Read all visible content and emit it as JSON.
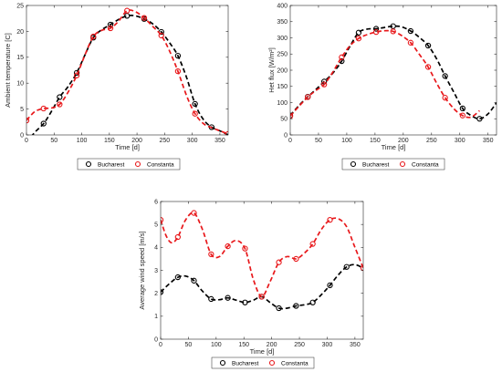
{
  "chart_data": [
    {
      "id": "temp",
      "type": "line",
      "xlabel": "Time [d]",
      "ylabel": "Ambient temperature [C]",
      "xlim": [
        0,
        365
      ],
      "ylim": [
        0,
        25
      ],
      "xticks": [
        0,
        50,
        100,
        150,
        200,
        250,
        300,
        350
      ],
      "yticks": [
        0,
        5,
        10,
        15,
        20,
        25
      ],
      "grid": false,
      "legend_placement": "below",
      "series": [
        {
          "name": "Bucharest",
          "color": "#000000",
          "points": [
            [
              31,
              2.2
            ],
            [
              60,
              7.3
            ],
            [
              91,
              12.0
            ],
            [
              121,
              18.8
            ],
            [
              152,
              21.3
            ],
            [
              182,
              23.0
            ],
            [
              213,
              22.4
            ],
            [
              244,
              19.9
            ],
            [
              274,
              15.3
            ],
            [
              305,
              6.0
            ],
            [
              335,
              1.5
            ]
          ],
          "curve": [
            [
              0,
              -1.5
            ],
            [
              15,
              0.5
            ],
            [
              31,
              2.2
            ],
            [
              45,
              4.5
            ],
            [
              60,
              7.3
            ],
            [
              75,
              9.3
            ],
            [
              91,
              12.0
            ],
            [
              106,
              15.5
            ],
            [
              121,
              18.8
            ],
            [
              136,
              20.3
            ],
            [
              152,
              21.3
            ],
            [
              167,
              22.3
            ],
            [
              182,
              23.0
            ],
            [
              197,
              23.0
            ],
            [
              213,
              22.4
            ],
            [
              228,
              21.5
            ],
            [
              244,
              19.9
            ],
            [
              259,
              17.8
            ],
            [
              274,
              15.3
            ],
            [
              290,
              11.0
            ],
            [
              305,
              6.0
            ],
            [
              320,
              3.0
            ],
            [
              335,
              1.5
            ],
            [
              350,
              0.8
            ],
            [
              365,
              0.0
            ]
          ]
        },
        {
          "name": "Constanta",
          "color": "#e8181b",
          "points": [
            [
              0,
              2.8
            ],
            [
              31,
              5.1
            ],
            [
              60,
              5.9
            ],
            [
              91,
              11.5
            ],
            [
              121,
              19.0
            ],
            [
              152,
              20.6
            ],
            [
              182,
              24.0
            ],
            [
              213,
              22.6
            ],
            [
              244,
              19.2
            ],
            [
              274,
              12.3
            ],
            [
              305,
              4.1
            ],
            [
              365,
              0.2
            ]
          ],
          "curve": [
            [
              0,
              2.8
            ],
            [
              15,
              4.5
            ],
            [
              31,
              5.1
            ],
            [
              45,
              5.2
            ],
            [
              60,
              5.9
            ],
            [
              75,
              8.2
            ],
            [
              91,
              11.5
            ],
            [
              106,
              15.5
            ],
            [
              121,
              19.0
            ],
            [
              136,
              20.2
            ],
            [
              152,
              20.6
            ],
            [
              167,
              22.0
            ],
            [
              182,
              24.0
            ],
            [
              197,
              23.8
            ],
            [
              213,
              22.6
            ],
            [
              228,
              21.0
            ],
            [
              244,
              19.2
            ],
            [
              259,
              16.2
            ],
            [
              274,
              12.3
            ],
            [
              290,
              7.5
            ],
            [
              305,
              4.1
            ],
            [
              320,
              2.2
            ],
            [
              335,
              1.4
            ],
            [
              350,
              0.8
            ],
            [
              365,
              0.2
            ]
          ]
        }
      ]
    },
    {
      "id": "heat",
      "type": "line",
      "xlabel": "Time [d]",
      "ylabel": "Het flux [W/m²]",
      "xlim": [
        0,
        365
      ],
      "ylim": [
        0,
        400
      ],
      "xticks": [
        0,
        50,
        100,
        150,
        200,
        250,
        300,
        350
      ],
      "yticks": [
        0,
        50,
        100,
        150,
        200,
        250,
        300,
        350,
        400
      ],
      "grid": false,
      "legend_placement": "below",
      "series": [
        {
          "name": "Bucharest",
          "color": "#000000",
          "points": [
            [
              0,
              60
            ],
            [
              31,
              118
            ],
            [
              60,
              165
            ],
            [
              91,
              228
            ],
            [
              121,
              316
            ],
            [
              152,
              328
            ],
            [
              182,
              336
            ],
            [
              213,
              321
            ],
            [
              244,
              276
            ],
            [
              274,
              182
            ],
            [
              305,
              82
            ],
            [
              335,
              50
            ]
          ],
          "curve": [
            [
              0,
              60
            ],
            [
              15,
              90
            ],
            [
              31,
              118
            ],
            [
              45,
              140
            ],
            [
              60,
              165
            ],
            [
              75,
              190
            ],
            [
              91,
              228
            ],
            [
              106,
              275
            ],
            [
              121,
              316
            ],
            [
              136,
              327
            ],
            [
              152,
              328
            ],
            [
              167,
              332
            ],
            [
              182,
              336
            ],
            [
              197,
              334
            ],
            [
              213,
              321
            ],
            [
              228,
              302
            ],
            [
              244,
              276
            ],
            [
              259,
              235
            ],
            [
              274,
              182
            ],
            [
              290,
              130
            ],
            [
              305,
              82
            ],
            [
              320,
              60
            ],
            [
              335,
              50
            ],
            [
              350,
              65
            ],
            [
              365,
              100
            ]
          ]
        },
        {
          "name": "Constanta",
          "color": "#e8181b",
          "points": [
            [
              0,
              58
            ],
            [
              31,
              117
            ],
            [
              60,
              156
            ],
            [
              91,
              240
            ],
            [
              121,
              298
            ],
            [
              152,
              318
            ],
            [
              182,
              320
            ],
            [
              213,
              285
            ],
            [
              244,
              210
            ],
            [
              274,
              115
            ],
            [
              305,
              60
            ]
          ],
          "curve": [
            [
              0,
              58
            ],
            [
              15,
              88
            ],
            [
              31,
              117
            ],
            [
              45,
              137
            ],
            [
              60,
              156
            ],
            [
              75,
              193
            ],
            [
              91,
              240
            ],
            [
              106,
              276
            ],
            [
              121,
              298
            ],
            [
              136,
              310
            ],
            [
              152,
              318
            ],
            [
              167,
              322
            ],
            [
              182,
              320
            ],
            [
              197,
              307
            ],
            [
              213,
              285
            ],
            [
              228,
              250
            ],
            [
              244,
              210
            ],
            [
              259,
              160
            ],
            [
              274,
              115
            ],
            [
              290,
              80
            ],
            [
              305,
              60
            ],
            [
              320,
              55
            ],
            [
              335,
              75
            ]
          ]
        }
      ]
    },
    {
      "id": "wind",
      "type": "line",
      "xlabel": "Time [d]",
      "ylabel": "Average wind speed [m/s]",
      "xlim": [
        0,
        365
      ],
      "ylim": [
        0,
        6
      ],
      "xticks": [
        0,
        50,
        100,
        150,
        200,
        250,
        300,
        350
      ],
      "yticks": [
        0,
        1,
        2,
        3,
        4,
        5,
        6
      ],
      "grid": false,
      "legend_placement": "below",
      "series": [
        {
          "name": "Bucharest",
          "color": "#000000",
          "points": [
            [
              0,
              2.05
            ],
            [
              31,
              2.7
            ],
            [
              60,
              2.55
            ],
            [
              91,
              1.75
            ],
            [
              121,
              1.8
            ],
            [
              152,
              1.6
            ],
            [
              182,
              1.85
            ],
            [
              213,
              1.35
            ],
            [
              244,
              1.45
            ],
            [
              274,
              1.6
            ],
            [
              305,
              2.35
            ],
            [
              335,
              3.15
            ]
          ],
          "curve": [
            [
              0,
              2.05
            ],
            [
              15,
              2.4
            ],
            [
              31,
              2.7
            ],
            [
              45,
              2.75
            ],
            [
              60,
              2.55
            ],
            [
              75,
              2.1
            ],
            [
              91,
              1.75
            ],
            [
              106,
              1.72
            ],
            [
              121,
              1.8
            ],
            [
              136,
              1.7
            ],
            [
              152,
              1.6
            ],
            [
              167,
              1.7
            ],
            [
              182,
              1.85
            ],
            [
              197,
              1.6
            ],
            [
              213,
              1.35
            ],
            [
              228,
              1.35
            ],
            [
              244,
              1.45
            ],
            [
              259,
              1.5
            ],
            [
              274,
              1.6
            ],
            [
              290,
              1.95
            ],
            [
              305,
              2.35
            ],
            [
              320,
              2.8
            ],
            [
              335,
              3.15
            ],
            [
              350,
              3.25
            ],
            [
              365,
              3.1
            ]
          ]
        },
        {
          "name": "Constanta",
          "color": "#e8181b",
          "points": [
            [
              0,
              5.2
            ],
            [
              31,
              4.45
            ],
            [
              60,
              5.5
            ],
            [
              91,
              3.7
            ],
            [
              121,
              4.05
            ],
            [
              152,
              3.95
            ],
            [
              182,
              1.85
            ],
            [
              213,
              3.35
            ],
            [
              244,
              3.5
            ],
            [
              274,
              4.15
            ],
            [
              305,
              5.2
            ],
            [
              365,
              3.1
            ]
          ],
          "curve": [
            [
              0,
              5.2
            ],
            [
              10,
              4.5
            ],
            [
              20,
              4.2
            ],
            [
              31,
              4.45
            ],
            [
              45,
              5.2
            ],
            [
              60,
              5.5
            ],
            [
              75,
              4.8
            ],
            [
              91,
              3.7
            ],
            [
              106,
              3.6
            ],
            [
              121,
              4.05
            ],
            [
              136,
              4.3
            ],
            [
              152,
              3.95
            ],
            [
              167,
              2.6
            ],
            [
              182,
              1.85
            ],
            [
              197,
              2.5
            ],
            [
              213,
              3.35
            ],
            [
              228,
              3.6
            ],
            [
              244,
              3.5
            ],
            [
              259,
              3.75
            ],
            [
              274,
              4.15
            ],
            [
              290,
              4.8
            ],
            [
              305,
              5.2
            ],
            [
              320,
              5.25
            ],
            [
              335,
              4.9
            ],
            [
              350,
              4.0
            ],
            [
              365,
              3.1
            ]
          ]
        }
      ]
    }
  ]
}
